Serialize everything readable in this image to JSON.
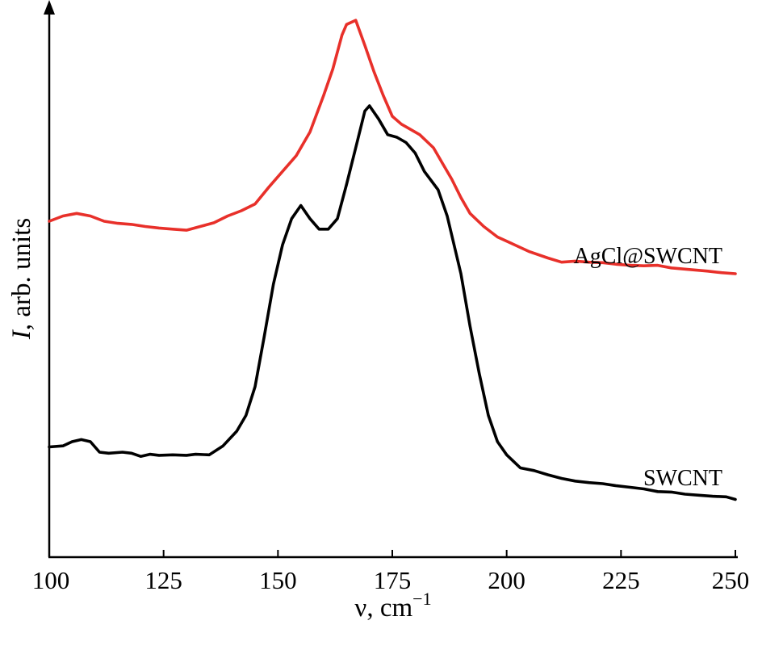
{
  "chart_data": {
    "type": "line",
    "xlabel": "ν, cm",
    "xlabel_superscript": "−1",
    "ylabel_italic": "I",
    "ylabel_rest": ", arb. units",
    "xlim": [
      100,
      250
    ],
    "ylim": [
      0,
      100
    ],
    "x_ticks": [
      100,
      125,
      150,
      175,
      200,
      225,
      250
    ],
    "y_ticks_shown": false,
    "grid": false,
    "legend": "inline labels at right",
    "series": [
      {
        "name": "AgCl@SWCNT",
        "color": "#e8302a",
        "points": [
          [
            100,
            64
          ],
          [
            103,
            65
          ],
          [
            106,
            65.5
          ],
          [
            109,
            65
          ],
          [
            112,
            64
          ],
          [
            115,
            63.6
          ],
          [
            118,
            63.4
          ],
          [
            121,
            63
          ],
          [
            124,
            62.7
          ],
          [
            127,
            62.5
          ],
          [
            130,
            62.3
          ],
          [
            133,
            63
          ],
          [
            136,
            63.7
          ],
          [
            139,
            65
          ],
          [
            142,
            66
          ],
          [
            145,
            67.3
          ],
          [
            148,
            70.5
          ],
          [
            151,
            73.5
          ],
          [
            154,
            76.5
          ],
          [
            157,
            81
          ],
          [
            160,
            88
          ],
          [
            162,
            93
          ],
          [
            164,
            99.5
          ],
          [
            165,
            101.5
          ],
          [
            167,
            102.3
          ],
          [
            169,
            97.5
          ],
          [
            171,
            92.5
          ],
          [
            173,
            88
          ],
          [
            175,
            84
          ],
          [
            177,
            82.5
          ],
          [
            179,
            81.5
          ],
          [
            181,
            80.5
          ],
          [
            184,
            78
          ],
          [
            186,
            75
          ],
          [
            188,
            72
          ],
          [
            190,
            68.5
          ],
          [
            192,
            65.5
          ],
          [
            195,
            63
          ],
          [
            198,
            61
          ],
          [
            201,
            59.8
          ],
          [
            205,
            58.2
          ],
          [
            209,
            57
          ],
          [
            212,
            56.2
          ],
          [
            215,
            56.4
          ],
          [
            218,
            56.2
          ],
          [
            221,
            56.1
          ],
          [
            224,
            55.8
          ],
          [
            227,
            55.6
          ],
          [
            230,
            55.5
          ],
          [
            233,
            55.6
          ],
          [
            236,
            55.1
          ],
          [
            240,
            54.8
          ],
          [
            244,
            54.5
          ],
          [
            247,
            54.2
          ],
          [
            250,
            54
          ]
        ]
      },
      {
        "name": "SWCNT",
        "color": "#000000",
        "points": [
          [
            100,
            21
          ],
          [
            103,
            21.2
          ],
          [
            105,
            22
          ],
          [
            107,
            22.4
          ],
          [
            109,
            22
          ],
          [
            111,
            20
          ],
          [
            113,
            19.8
          ],
          [
            116,
            20
          ],
          [
            118,
            19.8
          ],
          [
            120,
            19.2
          ],
          [
            122,
            19.6
          ],
          [
            124,
            19.4
          ],
          [
            127,
            19.5
          ],
          [
            130,
            19.4
          ],
          [
            132,
            19.6
          ],
          [
            135,
            19.5
          ],
          [
            138,
            21.2
          ],
          [
            141,
            24
          ],
          [
            143,
            27
          ],
          [
            145,
            32.5
          ],
          [
            147,
            42
          ],
          [
            149,
            52
          ],
          [
            151,
            59.5
          ],
          [
            153,
            64.5
          ],
          [
            155,
            67
          ],
          [
            157,
            64.5
          ],
          [
            159,
            62.5
          ],
          [
            161,
            62.5
          ],
          [
            163,
            64.5
          ],
          [
            165,
            71
          ],
          [
            167,
            78
          ],
          [
            169,
            85
          ],
          [
            170,
            86
          ],
          [
            172,
            83.5
          ],
          [
            174,
            80.5
          ],
          [
            176,
            80
          ],
          [
            178,
            79
          ],
          [
            180,
            77
          ],
          [
            182,
            73.5
          ],
          [
            185,
            70
          ],
          [
            187,
            65
          ],
          [
            190,
            54
          ],
          [
            192,
            44
          ],
          [
            194,
            35
          ],
          [
            196,
            27
          ],
          [
            198,
            22
          ],
          [
            200,
            19.5
          ],
          [
            203,
            17
          ],
          [
            206,
            16.5
          ],
          [
            209,
            15.7
          ],
          [
            212,
            15
          ],
          [
            215,
            14.5
          ],
          [
            218,
            14.2
          ],
          [
            221,
            14
          ],
          [
            224,
            13.6
          ],
          [
            227,
            13.3
          ],
          [
            230,
            13
          ],
          [
            233,
            12.5
          ],
          [
            236,
            12.4
          ],
          [
            239,
            12
          ],
          [
            242,
            11.8
          ],
          [
            245,
            11.6
          ],
          [
            248,
            11.5
          ],
          [
            250,
            11
          ]
        ]
      }
    ]
  }
}
